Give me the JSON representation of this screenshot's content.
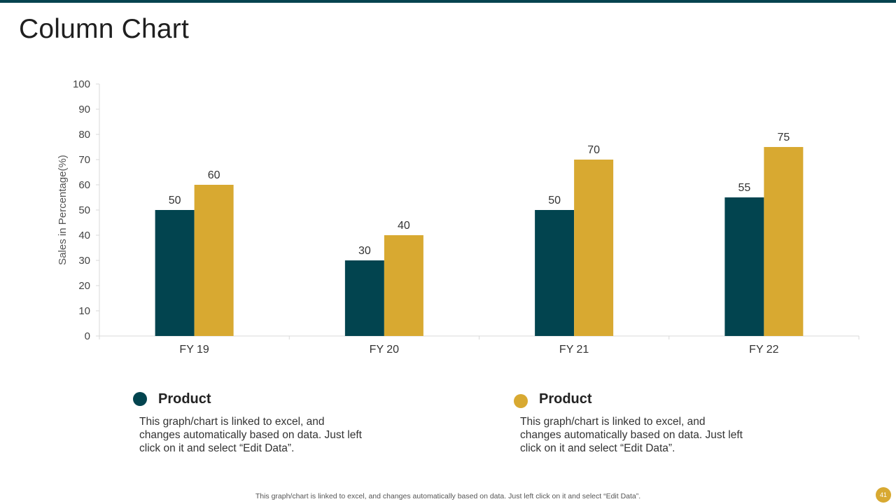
{
  "page": {
    "title": "Column Chart",
    "footer_note": "This graph/chart is linked to excel,  and changes automatically based on data. Just left click on it and select “Edit Data”.",
    "page_number": "41"
  },
  "colors": {
    "series1": "#02444f",
    "series2": "#d8a931",
    "accent": "#06434f",
    "page_badge": "#d8a931"
  },
  "legend": [
    {
      "title": "Product",
      "description": "This graph/chart  is linked to excel, and changes automatically based on data. Just left click on it and select “Edit Data”."
    },
    {
      "title": "Product",
      "description": "This graph/chart  is linked to excel, and changes automatically based on data. Just left click on it and select “Edit Data”."
    }
  ],
  "chart_data": {
    "type": "bar",
    "title": "",
    "xlabel": "",
    "ylabel": "Sales in Percentage(%)",
    "categories": [
      "FY 19",
      "FY 20",
      "FY 21",
      "FY 22"
    ],
    "series": [
      {
        "name": "Product",
        "values": [
          50,
          30,
          50,
          55
        ]
      },
      {
        "name": "Product",
        "values": [
          60,
          40,
          70,
          75
        ]
      }
    ],
    "ylim": [
      0,
      100
    ],
    "yticks": [
      0,
      10,
      20,
      30,
      40,
      50,
      60,
      70,
      80,
      90,
      100
    ],
    "grid": false,
    "data_labels": true
  }
}
